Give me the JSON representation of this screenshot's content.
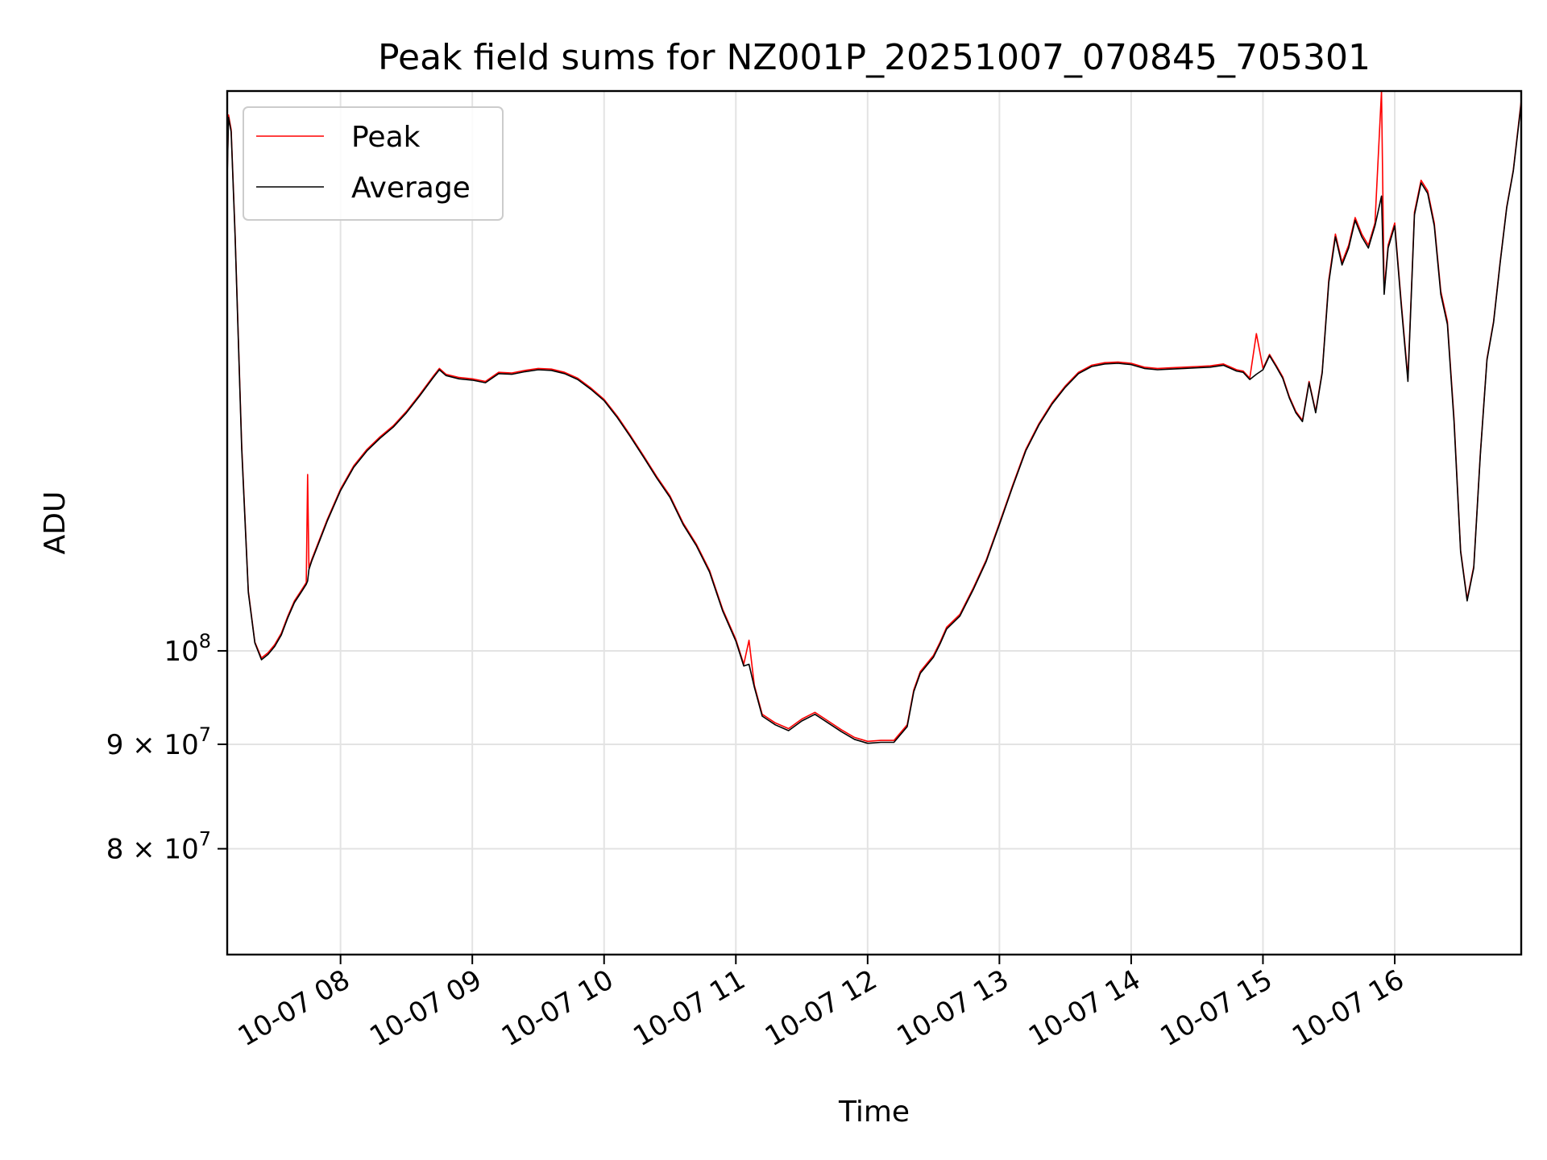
{
  "chart_data": {
    "type": "line",
    "title": "Peak field sums for NZ001P_20251007_070845_705301",
    "xlabel": "Time",
    "ylabel": "ADU",
    "yscale": "log",
    "grid": true,
    "legend_position": "top-left",
    "xlim": [
      7.14,
      16.96
    ],
    "ylim": [
      71000000,
      188000000
    ],
    "x_unit": "hours since 2025-10-07 00:00",
    "x_ticks": [
      {
        "value": 8,
        "label": "10-07 08"
      },
      {
        "value": 9,
        "label": "10-07 09"
      },
      {
        "value": 10,
        "label": "10-07 10"
      },
      {
        "value": 11,
        "label": "10-07 11"
      },
      {
        "value": 12,
        "label": "10-07 12"
      },
      {
        "value": 13,
        "label": "10-07 13"
      },
      {
        "value": 14,
        "label": "10-07 14"
      },
      {
        "value": 15,
        "label": "10-07 15"
      },
      {
        "value": 16,
        "label": "10-07 16"
      }
    ],
    "y_ticks": [
      {
        "value": 80000000,
        "base": "8 × 10",
        "exp": "7"
      },
      {
        "value": 90000000,
        "base": "9 × 10",
        "exp": "7"
      },
      {
        "value": 100000000,
        "base": "10",
        "exp": "8"
      }
    ],
    "series": [
      {
        "name": "Peak",
        "color": "#ff0000",
        "x": [
          7.14,
          7.15,
          7.17,
          7.2,
          7.25,
          7.3,
          7.35,
          7.4,
          7.45,
          7.5,
          7.55,
          7.6,
          7.65,
          7.7,
          7.74,
          7.75,
          7.76,
          7.78,
          7.82,
          7.9,
          8.0,
          8.1,
          8.2,
          8.3,
          8.4,
          8.5,
          8.6,
          8.7,
          8.75,
          8.8,
          8.9,
          9.0,
          9.1,
          9.2,
          9.3,
          9.4,
          9.5,
          9.6,
          9.7,
          9.8,
          9.9,
          10.0,
          10.1,
          10.2,
          10.3,
          10.4,
          10.5,
          10.6,
          10.7,
          10.8,
          10.9,
          11.0,
          11.06,
          11.1,
          11.14,
          11.2,
          11.3,
          11.4,
          11.5,
          11.6,
          11.7,
          11.8,
          11.9,
          12.0,
          12.1,
          12.2,
          12.3,
          12.35,
          12.4,
          12.5,
          12.55,
          12.6,
          12.7,
          12.8,
          12.9,
          13.0,
          13.1,
          13.2,
          13.3,
          13.4,
          13.5,
          13.6,
          13.7,
          13.8,
          13.9,
          14.0,
          14.1,
          14.2,
          14.3,
          14.4,
          14.5,
          14.6,
          14.7,
          14.8,
          14.85,
          14.9,
          14.95,
          15.0,
          15.05,
          15.1,
          15.15,
          15.2,
          15.25,
          15.3,
          15.35,
          15.4,
          15.45,
          15.5,
          15.55,
          15.6,
          15.65,
          15.7,
          15.75,
          15.8,
          15.85,
          15.9,
          15.92,
          15.95,
          16.0,
          16.05,
          16.1,
          16.15,
          16.2,
          16.25,
          16.3,
          16.35,
          16.4,
          16.45,
          16.5,
          16.55,
          16.6,
          16.65,
          16.7,
          16.75,
          16.8,
          16.85,
          16.9,
          16.96
        ],
        "values": [
          171000000,
          183000000,
          180000000,
          160000000,
          126000000,
          107000000,
          101000000,
          99200000,
          99800000,
          100700000,
          102000000,
          104000000,
          105800000,
          107000000,
          108000000,
          122000000,
          109800000,
          110800000,
          112500000,
          116000000,
          120000000,
          123200000,
          125500000,
          127300000,
          128900000,
          131000000,
          133500000,
          136200000,
          137500000,
          136600000,
          136100000,
          135900000,
          135500000,
          136900000,
          136800000,
          137200000,
          137500000,
          137400000,
          136900000,
          136000000,
          134500000,
          132800000,
          130300000,
          127500000,
          124600000,
          121700000,
          119100000,
          115500000,
          112800000,
          109500000,
          104800000,
          101300000,
          98500000,
          101200000,
          96200000,
          93100000,
          92200000,
          91600000,
          92600000,
          93300000,
          92400000,
          91500000,
          90700000,
          90300000,
          90400000,
          90400000,
          92000000,
          95700000,
          97700000,
          99500000,
          101000000,
          102700000,
          104200000,
          107300000,
          110800000,
          115500000,
          120500000,
          125500000,
          129200000,
          132300000,
          134800000,
          136900000,
          138000000,
          138400000,
          138500000,
          138300000,
          137700000,
          137500000,
          137600000,
          137700000,
          137800000,
          137900000,
          138200000,
          137300000,
          137100000,
          136000000,
          143000000,
          137500000,
          139700000,
          138000000,
          136200000,
          133200000,
          131000000,
          129700000,
          135500000,
          131000000,
          137000000,
          152000000,
          160000000,
          155000000,
          158000000,
          163000000,
          160000000,
          158000000,
          162000000,
          188000000,
          150000000,
          158000000,
          162000000,
          148000000,
          136000000,
          164000000,
          170000000,
          168000000,
          162000000,
          150000000,
          145000000,
          130000000,
          112000000,
          106000000,
          110000000,
          125000000,
          139000000,
          145000000,
          155000000,
          165000000,
          172000000,
          186000000
        ]
      },
      {
        "name": "Average",
        "color": "#000000",
        "x": [
          7.14,
          7.15,
          7.17,
          7.2,
          7.25,
          7.3,
          7.35,
          7.4,
          7.45,
          7.5,
          7.55,
          7.6,
          7.65,
          7.7,
          7.74,
          7.75,
          7.76,
          7.78,
          7.82,
          7.9,
          8.0,
          8.1,
          8.2,
          8.3,
          8.4,
          8.5,
          8.6,
          8.7,
          8.75,
          8.8,
          8.9,
          9.0,
          9.1,
          9.2,
          9.3,
          9.4,
          9.5,
          9.6,
          9.7,
          9.8,
          9.9,
          10.0,
          10.1,
          10.2,
          10.3,
          10.4,
          10.5,
          10.6,
          10.7,
          10.8,
          10.9,
          11.0,
          11.06,
          11.1,
          11.14,
          11.2,
          11.3,
          11.4,
          11.5,
          11.6,
          11.7,
          11.8,
          11.9,
          12.0,
          12.1,
          12.2,
          12.3,
          12.35,
          12.4,
          12.5,
          12.55,
          12.6,
          12.7,
          12.8,
          12.9,
          13.0,
          13.1,
          13.2,
          13.3,
          13.4,
          13.5,
          13.6,
          13.7,
          13.8,
          13.9,
          14.0,
          14.1,
          14.2,
          14.3,
          14.4,
          14.5,
          14.6,
          14.7,
          14.8,
          14.85,
          14.9,
          14.95,
          15.0,
          15.05,
          15.1,
          15.15,
          15.2,
          15.25,
          15.3,
          15.35,
          15.4,
          15.45,
          15.5,
          15.55,
          15.6,
          15.65,
          15.7,
          15.75,
          15.8,
          15.85,
          15.9,
          15.92,
          15.95,
          16.0,
          16.05,
          16.1,
          16.15,
          16.2,
          16.25,
          16.3,
          16.35,
          16.4,
          16.45,
          16.5,
          16.55,
          16.6,
          16.65,
          16.7,
          16.75,
          16.8,
          16.85,
          16.9,
          16.96
        ],
        "values": [
          170500000,
          182500000,
          179500000,
          159500000,
          125500000,
          106800000,
          100900000,
          99000000,
          99600000,
          100500000,
          101800000,
          103800000,
          105600000,
          106800000,
          107800000,
          108200000,
          109600000,
          110600000,
          112300000,
          115800000,
          119800000,
          123000000,
          125300000,
          127100000,
          128700000,
          130800000,
          133300000,
          136000000,
          137300000,
          136400000,
          135900000,
          135700000,
          135300000,
          136700000,
          136600000,
          137000000,
          137300000,
          137200000,
          136700000,
          135800000,
          134300000,
          132600000,
          130100000,
          127300000,
          124400000,
          121500000,
          118900000,
          115300000,
          112600000,
          109300000,
          104600000,
          101100000,
          98300000,
          98500000,
          96000000,
          92900000,
          92000000,
          91400000,
          92400000,
          93100000,
          92200000,
          91300000,
          90500000,
          90100000,
          90200000,
          90200000,
          91800000,
          95500000,
          97500000,
          99300000,
          100800000,
          102500000,
          104000000,
          107100000,
          110600000,
          115300000,
          120300000,
          125300000,
          129000000,
          132100000,
          134600000,
          136700000,
          137800000,
          138200000,
          138300000,
          138100000,
          137500000,
          137300000,
          137400000,
          137500000,
          137600000,
          137700000,
          138000000,
          137100000,
          136900000,
          135800000,
          136600000,
          137300000,
          139500000,
          137800000,
          136000000,
          133000000,
          130800000,
          129500000,
          135300000,
          130800000,
          136800000,
          151500000,
          159500000,
          154500000,
          157500000,
          162500000,
          159500000,
          157500000,
          161500000,
          167000000,
          149500000,
          157500000,
          161500000,
          147500000,
          135500000,
          163500000,
          169500000,
          167500000,
          161500000,
          149500000,
          144500000,
          129500000,
          111800000,
          105800000,
          109800000,
          124800000,
          138800000,
          144800000,
          154800000,
          164800000,
          171800000,
          185500000
        ]
      }
    ]
  }
}
